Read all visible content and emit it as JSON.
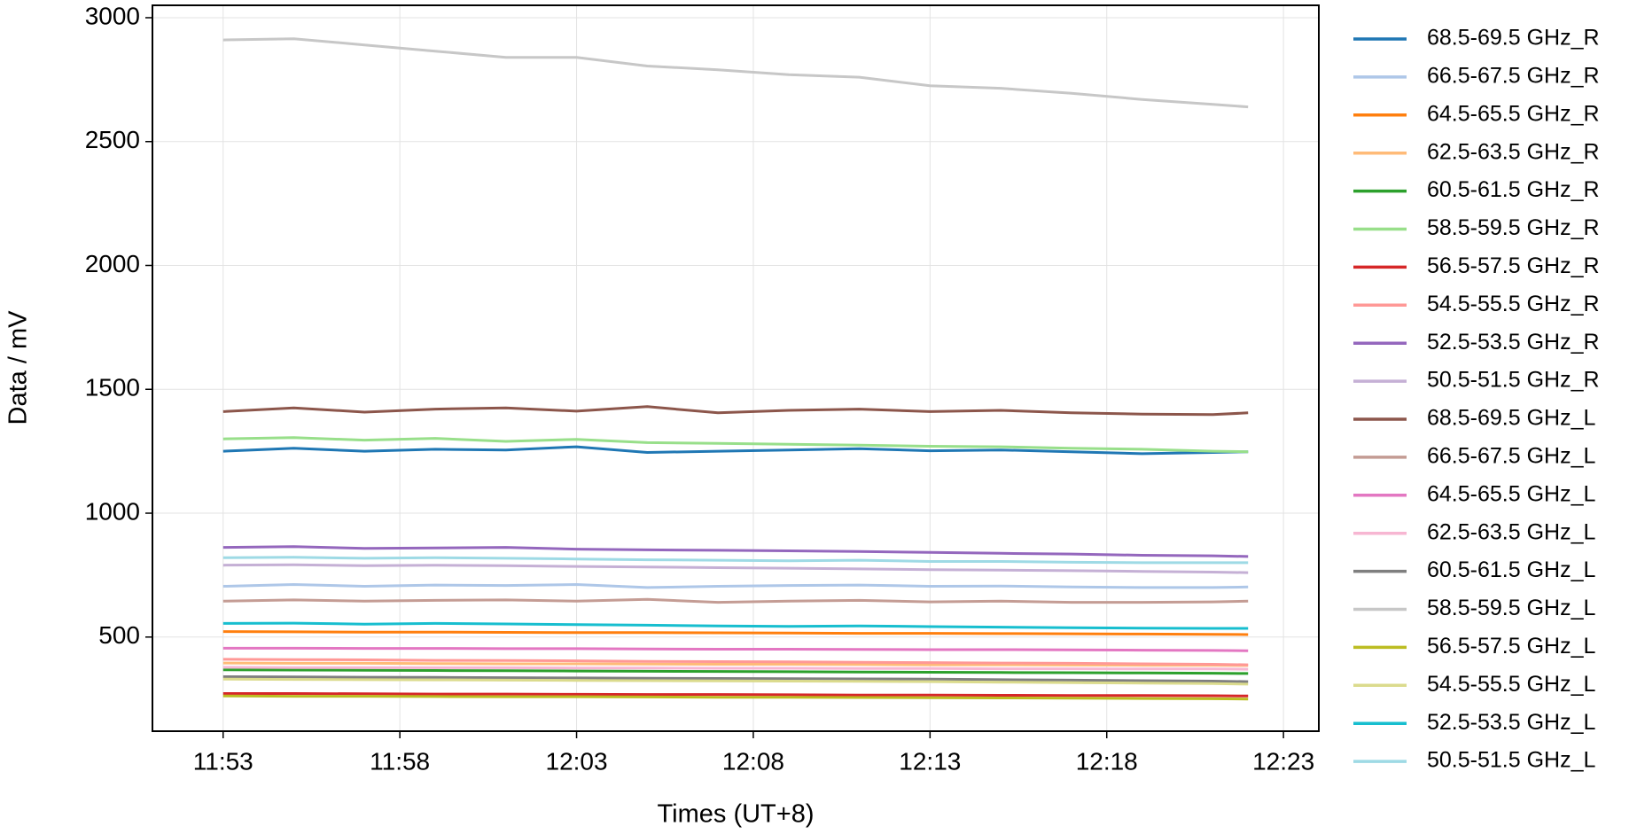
{
  "chart_data": {
    "type": "line",
    "xlabel": "Times (UT+8)",
    "ylabel": "Data / mV",
    "x": [
      "11:53",
      "11:55",
      "11:57",
      "11:59",
      "12:01",
      "12:03",
      "12:05",
      "12:07",
      "12:09",
      "12:11",
      "12:13",
      "12:15",
      "12:17",
      "12:19",
      "12:21",
      "12:22"
    ],
    "xlim": [
      "11:51",
      "12:24"
    ],
    "xticks": [
      "11:53",
      "11:58",
      "12:03",
      "12:08",
      "12:13",
      "12:18",
      "12:23"
    ],
    "ylim": [
      120,
      3050
    ],
    "yticks": [
      500,
      1000,
      1500,
      2000,
      2500,
      3000
    ],
    "grid": true,
    "legend": "outside right",
    "series": [
      {
        "name": "68.5-69.5 GHz_R",
        "color": "#1f77b4",
        "values": [
          1250,
          1262,
          1250,
          1258,
          1255,
          1268,
          1245,
          1250,
          1255,
          1260,
          1252,
          1255,
          1248,
          1240,
          1245,
          1248
        ]
      },
      {
        "name": "66.5-67.5 GHz_R",
        "color": "#aec7e8",
        "values": [
          705,
          712,
          705,
          710,
          708,
          712,
          700,
          705,
          708,
          710,
          705,
          706,
          702,
          700,
          700,
          702
        ]
      },
      {
        "name": "64.5-65.5 GHz_R",
        "color": "#ff7f0e",
        "values": [
          522,
          521,
          520,
          520,
          519,
          518,
          518,
          517,
          516,
          515,
          515,
          514,
          513,
          512,
          511,
          510
        ]
      },
      {
        "name": "62.5-63.5 GHz_R",
        "color": "#ffbb78",
        "values": [
          395,
          394,
          394,
          393,
          392,
          392,
          391,
          390,
          390,
          389,
          388,
          388,
          387,
          386,
          386,
          385
        ]
      },
      {
        "name": "60.5-61.5 GHz_R",
        "color": "#2ca02c",
        "values": [
          368,
          367,
          366,
          365,
          364,
          363,
          362,
          361,
          360,
          359,
          358,
          357,
          356,
          355,
          354,
          353
        ]
      },
      {
        "name": "58.5-59.5 GHz_R",
        "color": "#98df8a",
        "values": [
          1300,
          1305,
          1295,
          1302,
          1290,
          1298,
          1285,
          1282,
          1278,
          1275,
          1270,
          1268,
          1262,
          1258,
          1250,
          1248
        ]
      },
      {
        "name": "56.5-57.5 GHz_R",
        "color": "#d62728",
        "values": [
          272,
          272,
          271,
          270,
          270,
          269,
          268,
          268,
          267,
          266,
          266,
          265,
          264,
          264,
          263,
          262
        ]
      },
      {
        "name": "54.5-55.5 GHz_R",
        "color": "#ff9896",
        "values": [
          410,
          409,
          408,
          406,
          405,
          404,
          402,
          401,
          400,
          398,
          397,
          395,
          394,
          392,
          390,
          388
        ]
      },
      {
        "name": "52.5-53.5 GHz_R",
        "color": "#9467bd",
        "values": [
          862,
          865,
          858,
          860,
          862,
          855,
          852,
          850,
          848,
          845,
          842,
          838,
          835,
          830,
          828,
          825
        ]
      },
      {
        "name": "50.5-51.5 GHz_R",
        "color": "#c5b0d5",
        "values": [
          790,
          792,
          788,
          790,
          788,
          785,
          783,
          780,
          778,
          775,
          772,
          770,
          768,
          765,
          762,
          760
        ]
      },
      {
        "name": "68.5-69.5 GHz_L",
        "color": "#8c564b",
        "values": [
          1410,
          1425,
          1408,
          1420,
          1425,
          1412,
          1430,
          1405,
          1415,
          1420,
          1410,
          1415,
          1405,
          1400,
          1398,
          1405
        ]
      },
      {
        "name": "66.5-67.5 GHz_L",
        "color": "#c49c94",
        "values": [
          645,
          650,
          645,
          648,
          650,
          645,
          652,
          640,
          645,
          648,
          642,
          645,
          640,
          640,
          642,
          645
        ]
      },
      {
        "name": "64.5-65.5 GHz_L",
        "color": "#e377c2",
        "values": [
          455,
          455,
          454,
          454,
          453,
          453,
          452,
          451,
          451,
          450,
          449,
          449,
          448,
          447,
          446,
          445
        ]
      },
      {
        "name": "62.5-63.5 GHz_L",
        "color": "#f7b6d2",
        "values": [
          378,
          377,
          377,
          376,
          376,
          375,
          375,
          374,
          374,
          373,
          373,
          372,
          372,
          371,
          371,
          370
        ]
      },
      {
        "name": "60.5-61.5 GHz_L",
        "color": "#7f7f7f",
        "values": [
          340,
          339,
          338,
          337,
          336,
          335,
          334,
          333,
          332,
          331,
          330,
          328,
          326,
          324,
          322,
          320
        ]
      },
      {
        "name": "58.5-59.5 GHz_L",
        "color": "#c7c7c7",
        "values": [
          2910,
          2915,
          2890,
          2865,
          2840,
          2840,
          2805,
          2790,
          2770,
          2760,
          2725,
          2715,
          2695,
          2670,
          2650,
          2640
        ]
      },
      {
        "name": "56.5-57.5 GHz_L",
        "color": "#bcbd22",
        "values": [
          262,
          261,
          261,
          260,
          259,
          259,
          258,
          257,
          257,
          256,
          255,
          254,
          253,
          252,
          251,
          250
        ]
      },
      {
        "name": "54.5-55.5 GHz_L",
        "color": "#dbdb8d",
        "values": [
          330,
          329,
          328,
          327,
          326,
          325,
          324,
          323,
          322,
          321,
          320,
          318,
          316,
          314,
          312,
          310
        ]
      },
      {
        "name": "52.5-53.5 GHz_L",
        "color": "#17becf",
        "values": [
          555,
          556,
          552,
          555,
          553,
          550,
          548,
          545,
          543,
          545,
          542,
          540,
          538,
          536,
          535,
          535
        ]
      },
      {
        "name": "50.5-51.5 GHz_L",
        "color": "#9edae5",
        "values": [
          820,
          822,
          818,
          820,
          818,
          815,
          812,
          810,
          808,
          810,
          805,
          805,
          802,
          800,
          800,
          800
        ]
      }
    ]
  }
}
